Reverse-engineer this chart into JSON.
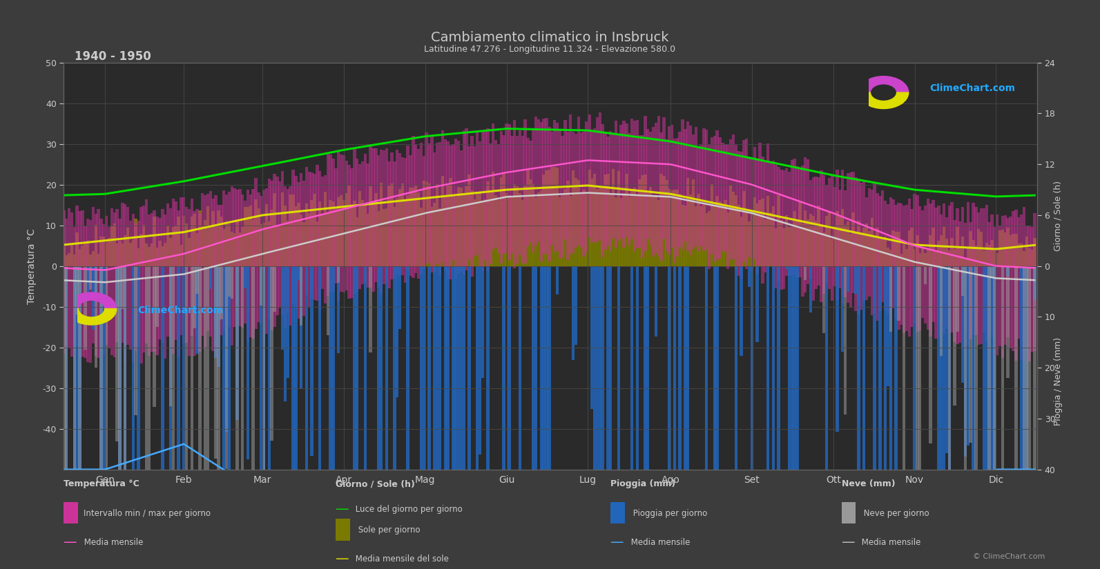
{
  "title": "Cambiamento climatico in Insbruck",
  "subtitle": "Latitudine 47.276 - Longitudine 11.324 - Elevazione 580.0",
  "period": "1940 - 1950",
  "months": [
    "Gen",
    "Feb",
    "Mar",
    "Apr",
    "Mag",
    "Giu",
    "Lug",
    "Ago",
    "Set",
    "Ott",
    "Nov",
    "Dic"
  ],
  "background_color": "#3c3c3c",
  "plot_bg_color": "#2a2a2a",
  "temp_max_monthly": [
    -1,
    3,
    9,
    14,
    19,
    23,
    26,
    25,
    20,
    13,
    5,
    0
  ],
  "temp_min_monthly": [
    -8,
    -6,
    -2,
    3,
    8,
    11,
    13,
    13,
    9,
    4,
    -2,
    -6
  ],
  "temp_mean_monthly": [
    -4,
    -2,
    3,
    8,
    13,
    17,
    18,
    17,
    13,
    7,
    1,
    -3
  ],
  "temp_max_abs_monthly": [
    12,
    15,
    20,
    26,
    30,
    33,
    35,
    34,
    29,
    22,
    15,
    12
  ],
  "temp_min_abs_monthly": [
    -22,
    -20,
    -15,
    -6,
    -2,
    2,
    5,
    4,
    -1,
    -7,
    -15,
    -20
  ],
  "sun_hours_monthly": [
    3.0,
    4.0,
    6.0,
    7.0,
    8.0,
    9.0,
    9.5,
    8.5,
    6.5,
    4.5,
    2.5,
    2.0
  ],
  "daylight_hours_monthly": [
    8.5,
    10.0,
    11.8,
    13.7,
    15.3,
    16.2,
    16.0,
    14.7,
    12.7,
    10.7,
    9.0,
    8.2
  ],
  "rain_monthly_mean_mm": [
    40,
    35,
    45,
    55,
    80,
    95,
    100,
    90,
    65,
    50,
    55,
    40
  ],
  "snow_monthly_mean_mm": [
    60,
    50,
    30,
    10,
    0,
    0,
    0,
    0,
    0,
    5,
    30,
    55
  ],
  "color_green": "#00dd00",
  "color_yellow": "#dddd00",
  "color_pink_line": "#ff55cc",
  "color_white_line": "#cccccc",
  "color_cyan_line": "#44aaff",
  "color_blue_fill": "#2266bb",
  "color_grey_fill": "#999999",
  "color_olive_fill": "#7a7a00",
  "color_magenta_fill": "#cc3399",
  "grid_color": "#4a4a4a",
  "text_color": "#cccccc",
  "copyright": "© ClimeChart.com"
}
